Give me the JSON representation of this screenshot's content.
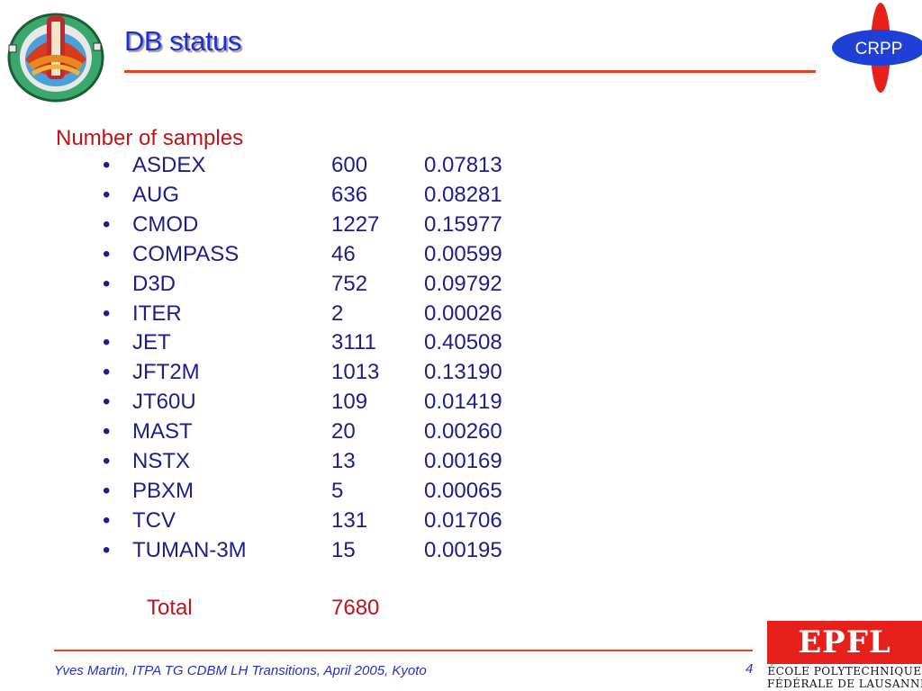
{
  "slide": {
    "title": "DB status",
    "section_heading": "Number of samples",
    "rows": [
      {
        "name": "ASDEX",
        "count": "600",
        "fraction": "0.07813"
      },
      {
        "name": "AUG",
        "count": "636",
        "fraction": "0.08281"
      },
      {
        "name": "CMOD",
        "count": "1227",
        "fraction": "0.15977"
      },
      {
        "name": "COMPASS",
        "count": "46",
        "fraction": "0.00599"
      },
      {
        "name": "D3D",
        "count": "752",
        "fraction": "0.09792"
      },
      {
        "name": "ITER",
        "count": "2",
        "fraction": "0.00026"
      },
      {
        "name": "JET",
        "count": "3111",
        "fraction": "0.40508"
      },
      {
        "name": "JFT2M",
        "count": "1013",
        "fraction": "0.13190"
      },
      {
        "name": "JT60U",
        "count": "109",
        "fraction": "0.01419"
      },
      {
        "name": "MAST",
        "count": "20",
        "fraction": "0.00260"
      },
      {
        "name": "NSTX",
        "count": "13",
        "fraction": "0.00169"
      },
      {
        "name": "PBXM",
        "count": "5",
        "fraction": "0.00065"
      },
      {
        "name": "TCV",
        "count": "131",
        "fraction": "0.01706"
      },
      {
        "name": "TUMAN-3M",
        "count": "15",
        "fraction": "0.00195"
      }
    ],
    "bullet": "•",
    "total_label": "Total",
    "total_value": "7680"
  },
  "footer": {
    "text": "Yves Martin, ITPA TG CDBM LH Transitions, April 2005, Kyoto",
    "page_number": "4"
  },
  "logos": {
    "crpp": "CRPP",
    "epfl_mark": "EPFL",
    "epfl_line1": "ÉCOLE POLYTECHNIQUE",
    "epfl_line2": "FÉDÉRALE DE LAUSANNE"
  },
  "colors": {
    "title": "#1f2fd6",
    "accent_rule": "#e8431b",
    "heading_red": "#c0131b",
    "list_navy": "#1d1d8c",
    "epfl_red": "#e8201c",
    "crpp_blue": "#1f3fd6"
  }
}
